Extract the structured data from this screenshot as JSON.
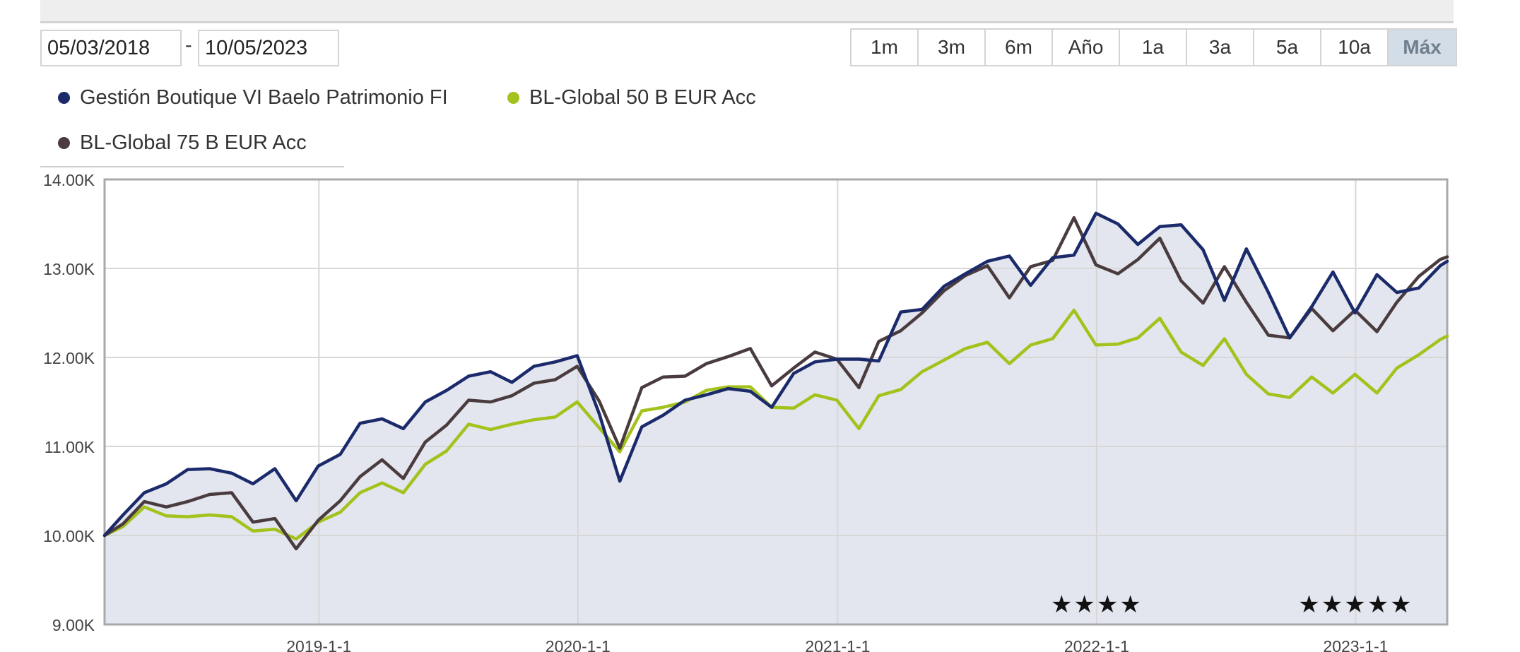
{
  "date_range": {
    "from": "05/03/2018",
    "separator": "-",
    "to": "10/05/2023"
  },
  "range_buttons": [
    {
      "label": "1m",
      "active": false
    },
    {
      "label": "3m",
      "active": false
    },
    {
      "label": "6m",
      "active": false
    },
    {
      "label": "Año",
      "active": false
    },
    {
      "label": "1a",
      "active": false
    },
    {
      "label": "3a",
      "active": false
    },
    {
      "label": "5a",
      "active": false
    },
    {
      "label": "10a",
      "active": false
    },
    {
      "label": "Máx",
      "active": true
    }
  ],
  "colors": {
    "series_0": "#1b2a6b",
    "series_1": "#a3c21c",
    "series_2": "#4a3c3e",
    "area_fill": "#e3e6ee",
    "grid": "#d7d7d7",
    "active_button": "#d3dde7"
  },
  "chart_data": {
    "type": "line",
    "x_axis": {
      "start": "2018-03-05",
      "end": "2023-05-10",
      "ticks": [
        "2019-1-1",
        "2020-1-1",
        "2021-1-1",
        "2022-1-1",
        "2023-1-1"
      ]
    },
    "y_axis": {
      "min": 9000,
      "max": 14000,
      "ticks": [
        9000,
        10000,
        11000,
        12000,
        13000,
        14000
      ],
      "tick_labels": [
        "9.00K",
        "10.00K",
        "11.00K",
        "12.00K",
        "13.00K",
        "14.00K"
      ]
    },
    "grid": true,
    "area_under_series": 0,
    "x": [
      "2018-03-05",
      "2018-03-31",
      "2018-04-30",
      "2018-05-31",
      "2018-06-30",
      "2018-07-31",
      "2018-08-31",
      "2018-09-30",
      "2018-10-31",
      "2018-11-30",
      "2018-12-31",
      "2019-01-31",
      "2019-02-28",
      "2019-03-31",
      "2019-04-30",
      "2019-05-31",
      "2019-06-30",
      "2019-07-31",
      "2019-08-31",
      "2019-09-30",
      "2019-10-31",
      "2019-11-30",
      "2019-12-31",
      "2020-01-31",
      "2020-02-29",
      "2020-03-31",
      "2020-04-30",
      "2020-05-31",
      "2020-06-30",
      "2020-07-31",
      "2020-08-31",
      "2020-09-30",
      "2020-10-31",
      "2020-11-30",
      "2020-12-31",
      "2021-01-31",
      "2021-02-28",
      "2021-03-31",
      "2021-04-30",
      "2021-05-31",
      "2021-06-30",
      "2021-07-31",
      "2021-08-31",
      "2021-09-30",
      "2021-10-31",
      "2021-11-30",
      "2021-12-31",
      "2022-01-31",
      "2022-02-28",
      "2022-03-31",
      "2022-04-30",
      "2022-05-31",
      "2022-06-30",
      "2022-07-31",
      "2022-08-31",
      "2022-09-30",
      "2022-10-31",
      "2022-11-30",
      "2022-12-31",
      "2023-01-31",
      "2023-02-28",
      "2023-03-31",
      "2023-04-30",
      "2023-05-10"
    ],
    "series": [
      {
        "name": "Gestión Boutique VI Baelo Patrimonio FI",
        "values": [
          10000,
          10230,
          10480,
          10580,
          10740,
          10750,
          10700,
          10580,
          10750,
          10390,
          10780,
          10910,
          11260,
          11310,
          11200,
          11500,
          11630,
          11790,
          11840,
          11720,
          11900,
          11950,
          12020,
          11370,
          10610,
          11220,
          11350,
          11520,
          11580,
          11650,
          11620,
          11440,
          11820,
          11950,
          11980,
          11980,
          11960,
          12510,
          12540,
          12800,
          12940,
          13080,
          13140,
          12810,
          13120,
          13150,
          13620,
          13500,
          13270,
          13470,
          13490,
          13210,
          12640,
          13220,
          12730,
          12220,
          12570,
          12960,
          12500,
          12930,
          12730,
          12780,
          13030,
          13080
        ]
      },
      {
        "name": "BL-Global 50 B EUR Acc",
        "values": [
          10000,
          10100,
          10320,
          10220,
          10210,
          10230,
          10210,
          10050,
          10070,
          9960,
          10150,
          10260,
          10480,
          10590,
          10480,
          10800,
          10950,
          11250,
          11190,
          11250,
          11300,
          11330,
          11500,
          11210,
          10940,
          11400,
          11440,
          11500,
          11630,
          11670,
          11670,
          11440,
          11430,
          11580,
          11520,
          11200,
          11570,
          11640,
          11840,
          11970,
          12100,
          12170,
          11930,
          12140,
          12210,
          12530,
          12140,
          12150,
          12220,
          12440,
          12060,
          11910,
          12210,
          11810,
          11590,
          11550,
          11780,
          11600,
          11810,
          11600,
          11880,
          12030,
          12200,
          12240
        ]
      },
      {
        "name": "BL-Global 75 B EUR Acc",
        "values": [
          10000,
          10130,
          10380,
          10320,
          10380,
          10460,
          10480,
          10150,
          10190,
          9850,
          10170,
          10390,
          10660,
          10850,
          10640,
          11050,
          11240,
          11520,
          11500,
          11570,
          11710,
          11750,
          11900,
          11510,
          10980,
          11660,
          11780,
          11790,
          11930,
          12010,
          12100,
          11680,
          11880,
          12060,
          11980,
          11660,
          12180,
          12300,
          12500,
          12750,
          12920,
          13030,
          12670,
          13020,
          13090,
          13570,
          13040,
          12940,
          13100,
          13340,
          12860,
          12610,
          13020,
          12620,
          12250,
          12220,
          12550,
          12300,
          12530,
          12290,
          12620,
          12910,
          13100,
          13130
        ]
      }
    ],
    "annotations": [
      {
        "text": "★★★★",
        "x": "2022-01-01"
      },
      {
        "text": "★★★★★",
        "x": "2023-01-01"
      }
    ]
  }
}
